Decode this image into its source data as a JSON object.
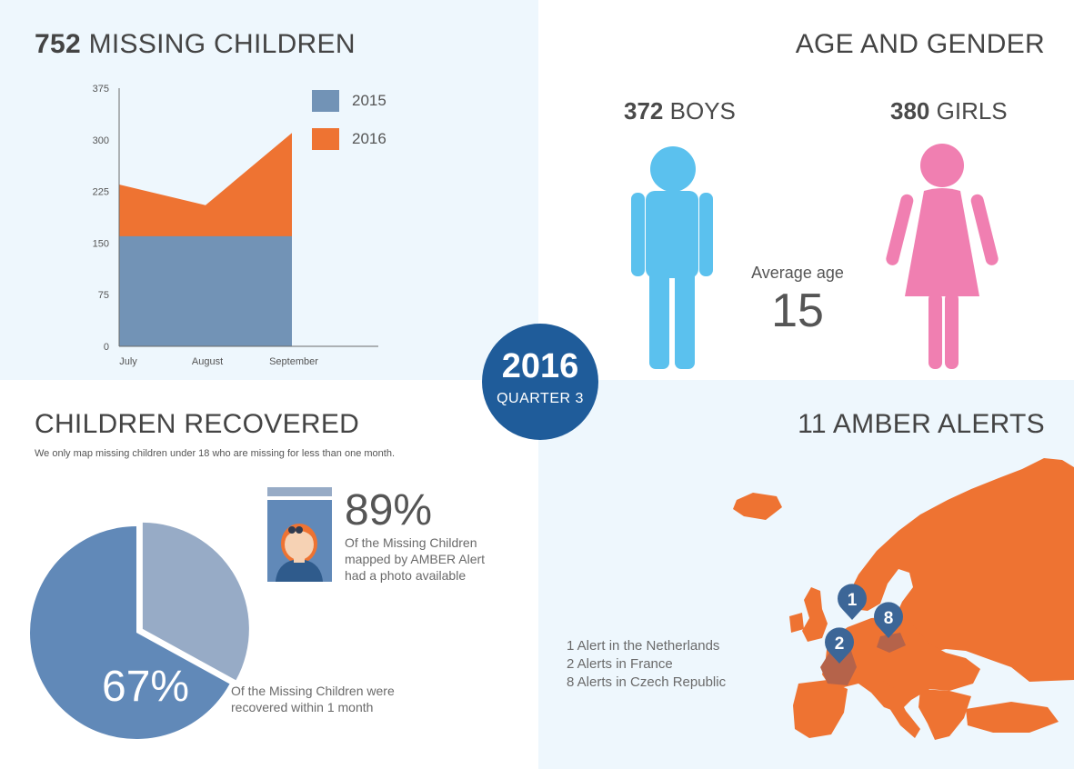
{
  "missing": {
    "title_number": "752",
    "title_text": "MISSING CHILDREN"
  },
  "chart_data": {
    "type": "area",
    "categories": [
      "July",
      "August",
      "September"
    ],
    "series": [
      {
        "name": "2015",
        "values": [
          160,
          160,
          160
        ],
        "color": "#7293b6"
      },
      {
        "name": "2016",
        "values": [
          235,
          205,
          310
        ],
        "color": "#ee7332"
      }
    ],
    "stacked": false,
    "ylim": [
      0,
      375
    ],
    "yticks": [
      "0",
      "75",
      "150",
      "225",
      "300",
      "375"
    ],
    "xlabel": "",
    "ylabel": "",
    "title": "",
    "grid": false,
    "legend": "top-right"
  },
  "age_gender": {
    "title": "AGE AND GENDER",
    "boys_number": "372",
    "boys_text": "BOYS",
    "girls_number": "380",
    "girls_text": "GIRLS",
    "avg_label": "Average age",
    "avg_value": "15",
    "boy_color": "#5bc1ee",
    "girl_color": "#f07fb1"
  },
  "badge": {
    "year": "2016",
    "quarter": "QUARTER  3"
  },
  "recovered": {
    "title": "CHILDREN RECOVERED",
    "note": "We only map missing children under 18 who are missing for less than one month.",
    "pie": {
      "percent_value": 67,
      "percent_label": "67%",
      "main_color": "#6189b8",
      "rest_color": "#97abc6"
    },
    "pie_caption_1": "Of the Missing  Children were",
    "pie_caption_2": "recovered within 1 month",
    "photo_percent": "89%",
    "photo_caption_1": "Of the Missing Children",
    "photo_caption_2": "mapped by AMBER Alert",
    "photo_caption_3": "had a photo available"
  },
  "amber": {
    "title": "11 AMBER ALERTS",
    "alerts": [
      "1 Alert in the Netherlands",
      "2 Alerts in France",
      "8 Alerts in Czech Republic"
    ],
    "pins": [
      "1",
      "2",
      "8"
    ],
    "map_color": "#ee7332",
    "pin_color": "#3c6697",
    "highlight_color": "#b5634a"
  }
}
